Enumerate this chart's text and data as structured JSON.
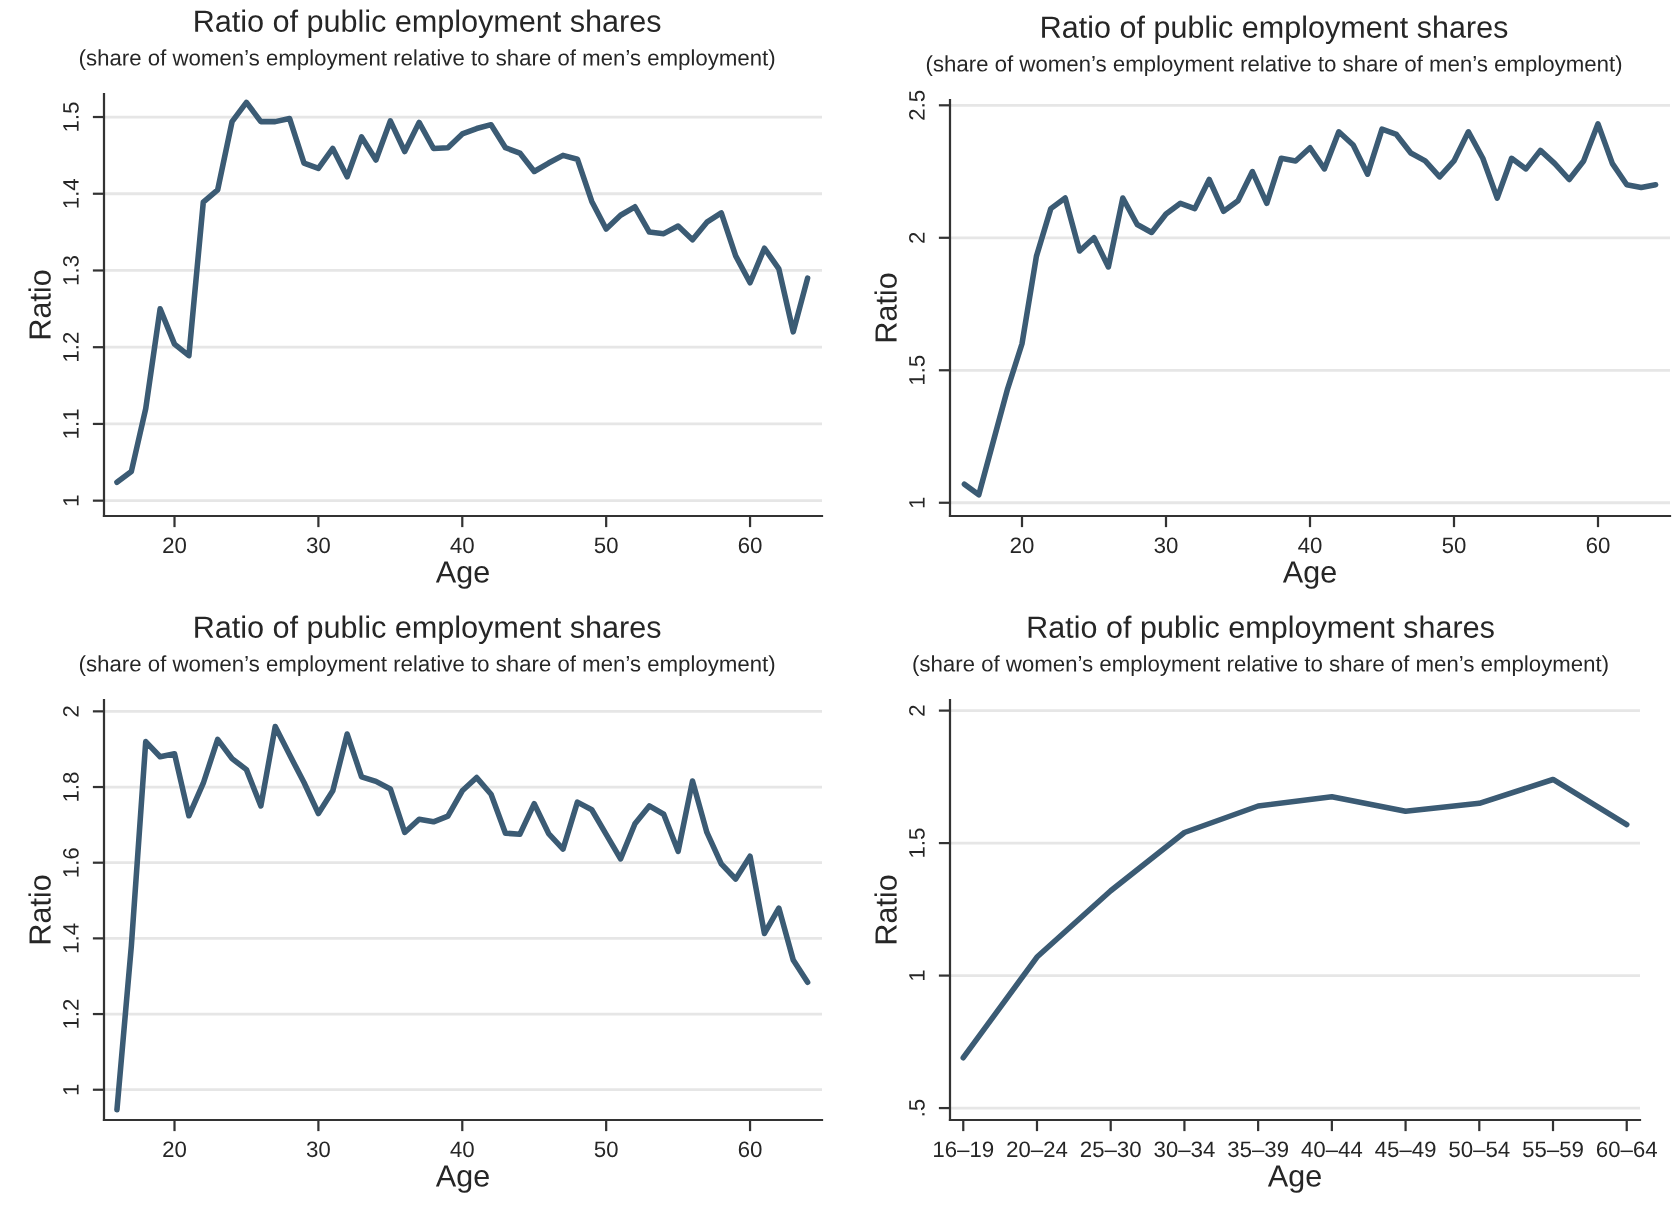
{
  "chart_data": [
    {
      "type": "line",
      "title": "Ratio of public employment shares",
      "subtitle": "(share of women’s employment relative to share of men’s employment)",
      "xlabel": "Age",
      "ylabel": "Ratio",
      "grid": "y",
      "x": [
        16,
        17,
        18,
        19,
        20,
        21,
        22,
        23,
        24,
        25,
        26,
        27,
        28,
        29,
        30,
        31,
        32,
        33,
        34,
        35,
        36,
        37,
        38,
        39,
        40,
        41,
        42,
        43,
        44,
        45,
        46,
        47,
        48,
        49,
        50,
        51,
        52,
        53,
        54,
        55,
        56,
        57,
        58,
        59,
        60,
        61,
        62,
        63,
        64
      ],
      "series": [
        {
          "color": "#3b5b74",
          "values": [
            1.024,
            1.038,
            1.12,
            1.25,
            1.204,
            1.189,
            1.389,
            1.405,
            1.494,
            1.519,
            1.494,
            1.494,
            1.498,
            1.44,
            1.433,
            1.459,
            1.422,
            1.474,
            1.444,
            1.495,
            1.455,
            1.493,
            1.459,
            1.46,
            1.478,
            1.485,
            1.49,
            1.46,
            1.453,
            1.429,
            1.44,
            1.45,
            1.445,
            1.39,
            1.354,
            1.372,
            1.383,
            1.35,
            1.348,
            1.358,
            1.34,
            1.363,
            1.375,
            1.319,
            1.284,
            1.329,
            1.302,
            1.22,
            1.29
          ]
        }
      ],
      "xlim": [
        15.1,
        65
      ],
      "ylim": [
        0.98,
        1.53
      ],
      "xticks": [
        20,
        30,
        40,
        50,
        60
      ],
      "yticks": [
        {
          "value": 1,
          "label": "1"
        },
        1.1,
        1.2,
        1.3,
        1.4,
        1.5
      ]
    },
    {
      "type": "line",
      "title": "Ratio of public employment shares",
      "subtitle": "(share of women’s employment relative to share of men’s employment)",
      "xlabel": "Age",
      "ylabel": "Ratio",
      "grid": "y",
      "x": [
        16,
        17,
        18,
        19,
        20,
        21,
        22,
        23,
        24,
        25,
        26,
        27,
        28,
        29,
        30,
        31,
        32,
        33,
        34,
        35,
        36,
        37,
        38,
        39,
        40,
        41,
        42,
        43,
        44,
        45,
        46,
        47,
        48,
        49,
        50,
        51,
        52,
        53,
        54,
        55,
        56,
        57,
        58,
        59,
        60,
        61,
        62,
        63,
        64
      ],
      "series": [
        {
          "color": "#3b5b74",
          "values": [
            1.07,
            1.03,
            1.23,
            1.43,
            1.6,
            1.93,
            2.11,
            2.15,
            1.95,
            2.0,
            1.89,
            2.15,
            2.05,
            2.02,
            2.09,
            2.13,
            2.11,
            2.22,
            2.1,
            2.14,
            2.25,
            2.13,
            2.3,
            2.29,
            2.34,
            2.26,
            2.4,
            2.35,
            2.24,
            2.41,
            2.39,
            2.32,
            2.29,
            2.23,
            2.29,
            2.4,
            2.3,
            2.15,
            2.3,
            2.26,
            2.33,
            2.28,
            2.22,
            2.29,
            2.43,
            2.28,
            2.2,
            2.19,
            2.2
          ]
        }
      ],
      "xlim": [
        15,
        65
      ],
      "ylim": [
        0.95,
        2.52
      ],
      "xticks": [
        20,
        30,
        40,
        50,
        60
      ],
      "yticks": [
        1,
        1.5,
        2,
        2.5
      ]
    },
    {
      "type": "line",
      "title": "Ratio of public employment shares",
      "subtitle": "(share of women’s employment relative to share of men’s employment)",
      "xlabel": "Age",
      "ylabel": "Ratio",
      "grid": "y",
      "x": [
        16,
        17,
        18,
        19,
        20,
        21,
        22,
        23,
        24,
        25,
        26,
        27,
        28,
        29,
        30,
        31,
        32,
        33,
        34,
        35,
        36,
        37,
        38,
        39,
        40,
        41,
        42,
        43,
        44,
        45,
        46,
        47,
        48,
        49,
        50,
        51,
        52,
        53,
        54,
        55,
        56,
        57,
        58,
        59,
        60,
        61,
        62,
        63,
        64
      ],
      "series": [
        {
          "color": "#3b5b74",
          "values": [
            0.947,
            1.38,
            1.92,
            1.88,
            1.888,
            1.724,
            1.81,
            1.926,
            1.875,
            1.846,
            1.75,
            1.96,
            1.885,
            1.812,
            1.73,
            1.79,
            1.94,
            1.827,
            1.815,
            1.795,
            1.68,
            1.715,
            1.708,
            1.723,
            1.79,
            1.825,
            1.781,
            1.678,
            1.675,
            1.756,
            1.677,
            1.636,
            1.76,
            1.74,
            1.675,
            1.61,
            1.703,
            1.75,
            1.728,
            1.63,
            1.816,
            1.68,
            1.597,
            1.557,
            1.617,
            1.413,
            1.48,
            1.343,
            1.284
          ]
        }
      ],
      "xlim": [
        15.1,
        65
      ],
      "ylim": [
        0.92,
        2.03
      ],
      "xticks": [
        20,
        30,
        40,
        50,
        60
      ],
      "yticks": [
        {
          "value": 1,
          "label": "1"
        },
        1.2,
        1.4,
        1.6,
        1.8,
        {
          "value": 2,
          "label": "2"
        }
      ]
    },
    {
      "type": "line",
      "title": "Ratio of public employment shares",
      "subtitle": "(share of women’s employment relative to share of men’s employment)",
      "xlabel": "Age",
      "ylabel": "Ratio",
      "grid": "y",
      "categories": [
        "16–19",
        "20–24",
        "25–30",
        "30–34",
        "35–39",
        "40–44",
        "45–49",
        "50–54",
        "55–59",
        "60–64"
      ],
      "series": [
        {
          "color": "#3b5b74",
          "values": [
            0.69,
            1.07,
            1.32,
            1.54,
            1.64,
            1.675,
            1.62,
            1.65,
            1.74,
            1.57
          ]
        }
      ],
      "ylim": [
        0.455,
        2.04
      ],
      "yticks": [
        {
          "value": 0.5,
          "label": ".5"
        },
        1,
        1.5,
        2
      ]
    }
  ]
}
